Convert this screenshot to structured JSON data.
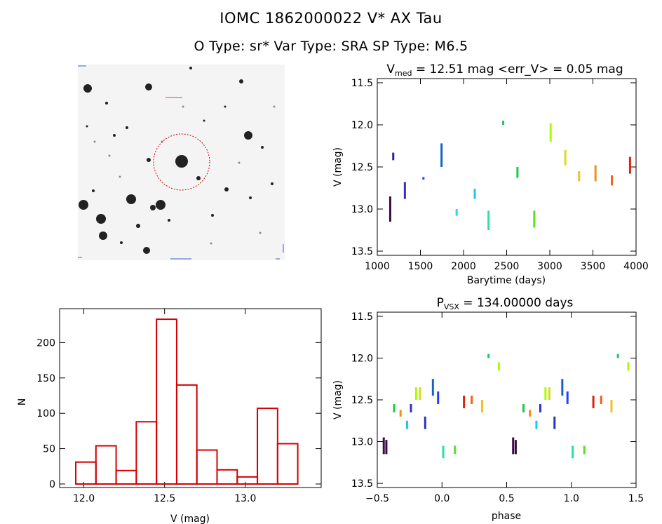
{
  "header": {
    "title": "IOMC 1862000022   V* AX Tau",
    "subtitle": "O Type: sr*  Var Type: SRA  SP Type: M6.5"
  },
  "colors": {
    "histogram": "#d40000",
    "circle": "#cc0000",
    "axes": "#000000"
  },
  "chart_data": [
    {
      "type": "scatter",
      "name": "light-curve",
      "title_parts": {
        "v": "V",
        "sub": "med",
        "rest": " = 12.51 mag <err_V> = 0.05 mag"
      },
      "xlabel": "Barytime (days)",
      "ylabel": "V (mag)",
      "xlim": [
        1000,
        4000
      ],
      "ylim": [
        13.55,
        11.45
      ],
      "xticks": [
        1000,
        1500,
        2000,
        2500,
        3000,
        3500,
        4000
      ],
      "xtick_labels": [
        "1000",
        "1500",
        "2000",
        "2500",
        "3000",
        "3500",
        "4000"
      ],
      "yticks": [
        11.5,
        12.0,
        12.5,
        13.0,
        13.5
      ],
      "ytick_labels": [
        "11.5",
        "12.0",
        "12.5",
        "13.0",
        "13.5"
      ],
      "segments": [
        {
          "x": 1150,
          "y1": 12.85,
          "y2": 13.15,
          "color": "#3b0a45"
        },
        {
          "x": 1185,
          "y1": 12.33,
          "y2": 12.42,
          "color": "#3a1a9c"
        },
        {
          "x": 1320,
          "y1": 12.68,
          "y2": 12.88,
          "color": "#3030c0"
        },
        {
          "x": 1535,
          "y1": 12.62,
          "y2": 12.65,
          "color": "#2040ff"
        },
        {
          "x": 1745,
          "y1": 12.22,
          "y2": 12.5,
          "color": "#1565c8"
        },
        {
          "x": 1920,
          "y1": 13.0,
          "y2": 13.08,
          "color": "#19e0e8"
        },
        {
          "x": 2130,
          "y1": 12.76,
          "y2": 12.88,
          "color": "#19c8e8"
        },
        {
          "x": 2290,
          "y1": 13.02,
          "y2": 13.25,
          "color": "#28e0a8"
        },
        {
          "x": 2460,
          "y1": 11.95,
          "y2": 12.0,
          "color": "#22c464"
        },
        {
          "x": 2625,
          "y1": 12.5,
          "y2": 12.63,
          "color": "#22c840"
        },
        {
          "x": 2820,
          "y1": 13.02,
          "y2": 13.22,
          "color": "#5ae020"
        },
        {
          "x": 3010,
          "y1": 11.98,
          "y2": 12.2,
          "color": "#a8ff00"
        },
        {
          "x": 3180,
          "y1": 12.3,
          "y2": 12.48,
          "color": "#ddd820"
        },
        {
          "x": 3340,
          "y1": 12.55,
          "y2": 12.67,
          "color": "#f0c020"
        },
        {
          "x": 3530,
          "y1": 12.48,
          "y2": 12.67,
          "color": "#f09018"
        },
        {
          "x": 3720,
          "y1": 12.6,
          "y2": 12.72,
          "color": "#f06018"
        },
        {
          "x": 3930,
          "y1": 12.38,
          "y2": 12.58,
          "color": "#e02010"
        }
      ]
    },
    {
      "type": "bar",
      "name": "histogram",
      "xlabel": "V (mag)",
      "ylabel": "N",
      "xlim": [
        11.85,
        13.47
      ],
      "ylim": [
        -5,
        248
      ],
      "xticks": [
        12.0,
        12.5,
        13.0
      ],
      "xtick_labels": [
        "12.0",
        "12.5",
        "13.0"
      ],
      "yticks": [
        0,
        50,
        100,
        150,
        200
      ],
      "ytick_labels": [
        "0",
        "50",
        "100",
        "150",
        "200"
      ],
      "bin_left": [
        11.95,
        12.075,
        12.2,
        12.325,
        12.45,
        12.575,
        12.7,
        12.825,
        12.95,
        13.075,
        13.2
      ],
      "bin_width": 0.125,
      "values": [
        31,
        54,
        19,
        88,
        233,
        140,
        48,
        20,
        10,
        107,
        57
      ]
    },
    {
      "type": "scatter",
      "name": "phased-curve",
      "title_parts": {
        "p": "P",
        "sub": "VSX",
        "rest": " = 134.00000 days"
      },
      "xlabel": "phase",
      "ylabel": "V (mag)",
      "xlim": [
        -0.5,
        1.5
      ],
      "ylim": [
        13.55,
        11.45
      ],
      "xticks": [
        -0.5,
        0.0,
        0.5,
        1.0,
        1.5
      ],
      "xtick_labels": [
        "−0.5",
        "0.0",
        "0.5",
        "1.0",
        "1.5"
      ],
      "yticks": [
        11.5,
        12.0,
        12.5,
        13.0,
        13.5
      ],
      "ytick_labels": [
        "11.5",
        "12.0",
        "12.5",
        "13.0",
        "13.5"
      ],
      "segments": [
        {
          "x": -0.45,
          "y1": 12.95,
          "y2": 13.15,
          "color": "#3b0a45"
        },
        {
          "x": -0.43,
          "y1": 12.98,
          "y2": 13.15,
          "color": "#3b0a45"
        },
        {
          "x": -0.37,
          "y1": 12.55,
          "y2": 12.65,
          "color": "#22c840"
        },
        {
          "x": -0.32,
          "y1": 12.62,
          "y2": 12.7,
          "color": "#f09018"
        },
        {
          "x": -0.27,
          "y1": 12.75,
          "y2": 12.85,
          "color": "#19c8e8"
        },
        {
          "x": -0.24,
          "y1": 12.55,
          "y2": 12.65,
          "color": "#3030c0"
        },
        {
          "x": -0.2,
          "y1": 12.35,
          "y2": 12.5,
          "color": "#a8ff00"
        },
        {
          "x": -0.17,
          "y1": 12.35,
          "y2": 12.5,
          "color": "#ddd820"
        },
        {
          "x": -0.13,
          "y1": 12.7,
          "y2": 12.85,
          "color": "#3030c0"
        },
        {
          "x": -0.07,
          "y1": 12.25,
          "y2": 12.45,
          "color": "#1565c8"
        },
        {
          "x": -0.03,
          "y1": 12.4,
          "y2": 12.55,
          "color": "#2040ff"
        },
        {
          "x": 0.01,
          "y1": 13.05,
          "y2": 13.2,
          "color": "#28e0a8"
        },
        {
          "x": 0.1,
          "y1": 13.05,
          "y2": 13.15,
          "color": "#5ae020"
        },
        {
          "x": 0.17,
          "y1": 12.45,
          "y2": 12.6,
          "color": "#e02010"
        },
        {
          "x": 0.23,
          "y1": 12.45,
          "y2": 12.55,
          "color": "#f06018"
        },
        {
          "x": 0.31,
          "y1": 12.5,
          "y2": 12.65,
          "color": "#f0c020"
        },
        {
          "x": 0.36,
          "y1": 11.95,
          "y2": 12.0,
          "color": "#22c464"
        },
        {
          "x": 0.44,
          "y1": 12.05,
          "y2": 12.15,
          "color": "#a8ff00"
        },
        {
          "x": 0.55,
          "y1": 12.95,
          "y2": 13.15,
          "color": "#3b0a45"
        },
        {
          "x": 0.57,
          "y1": 12.98,
          "y2": 13.15,
          "color": "#3b0a45"
        },
        {
          "x": 0.63,
          "y1": 12.55,
          "y2": 12.65,
          "color": "#22c840"
        },
        {
          "x": 0.68,
          "y1": 12.62,
          "y2": 12.7,
          "color": "#f09018"
        },
        {
          "x": 0.73,
          "y1": 12.75,
          "y2": 12.85,
          "color": "#19c8e8"
        },
        {
          "x": 0.76,
          "y1": 12.55,
          "y2": 12.65,
          "color": "#3030c0"
        },
        {
          "x": 0.8,
          "y1": 12.35,
          "y2": 12.5,
          "color": "#a8ff00"
        },
        {
          "x": 0.83,
          "y1": 12.35,
          "y2": 12.5,
          "color": "#ddd820"
        },
        {
          "x": 0.87,
          "y1": 12.7,
          "y2": 12.85,
          "color": "#3030c0"
        },
        {
          "x": 0.93,
          "y1": 12.25,
          "y2": 12.45,
          "color": "#1565c8"
        },
        {
          "x": 0.97,
          "y1": 12.4,
          "y2": 12.55,
          "color": "#2040ff"
        },
        {
          "x": 1.01,
          "y1": 13.05,
          "y2": 13.2,
          "color": "#28e0a8"
        },
        {
          "x": 1.1,
          "y1": 13.05,
          "y2": 13.15,
          "color": "#5ae020"
        },
        {
          "x": 1.17,
          "y1": 12.45,
          "y2": 12.6,
          "color": "#e02010"
        },
        {
          "x": 1.23,
          "y1": 12.45,
          "y2": 12.55,
          "color": "#f06018"
        },
        {
          "x": 1.31,
          "y1": 12.5,
          "y2": 12.65,
          "color": "#f0c020"
        },
        {
          "x": 1.36,
          "y1": 11.95,
          "y2": 12.0,
          "color": "#22c464"
        },
        {
          "x": 1.44,
          "y1": 12.05,
          "y2": 12.15,
          "color": "#a8ff00"
        }
      ]
    }
  ]
}
